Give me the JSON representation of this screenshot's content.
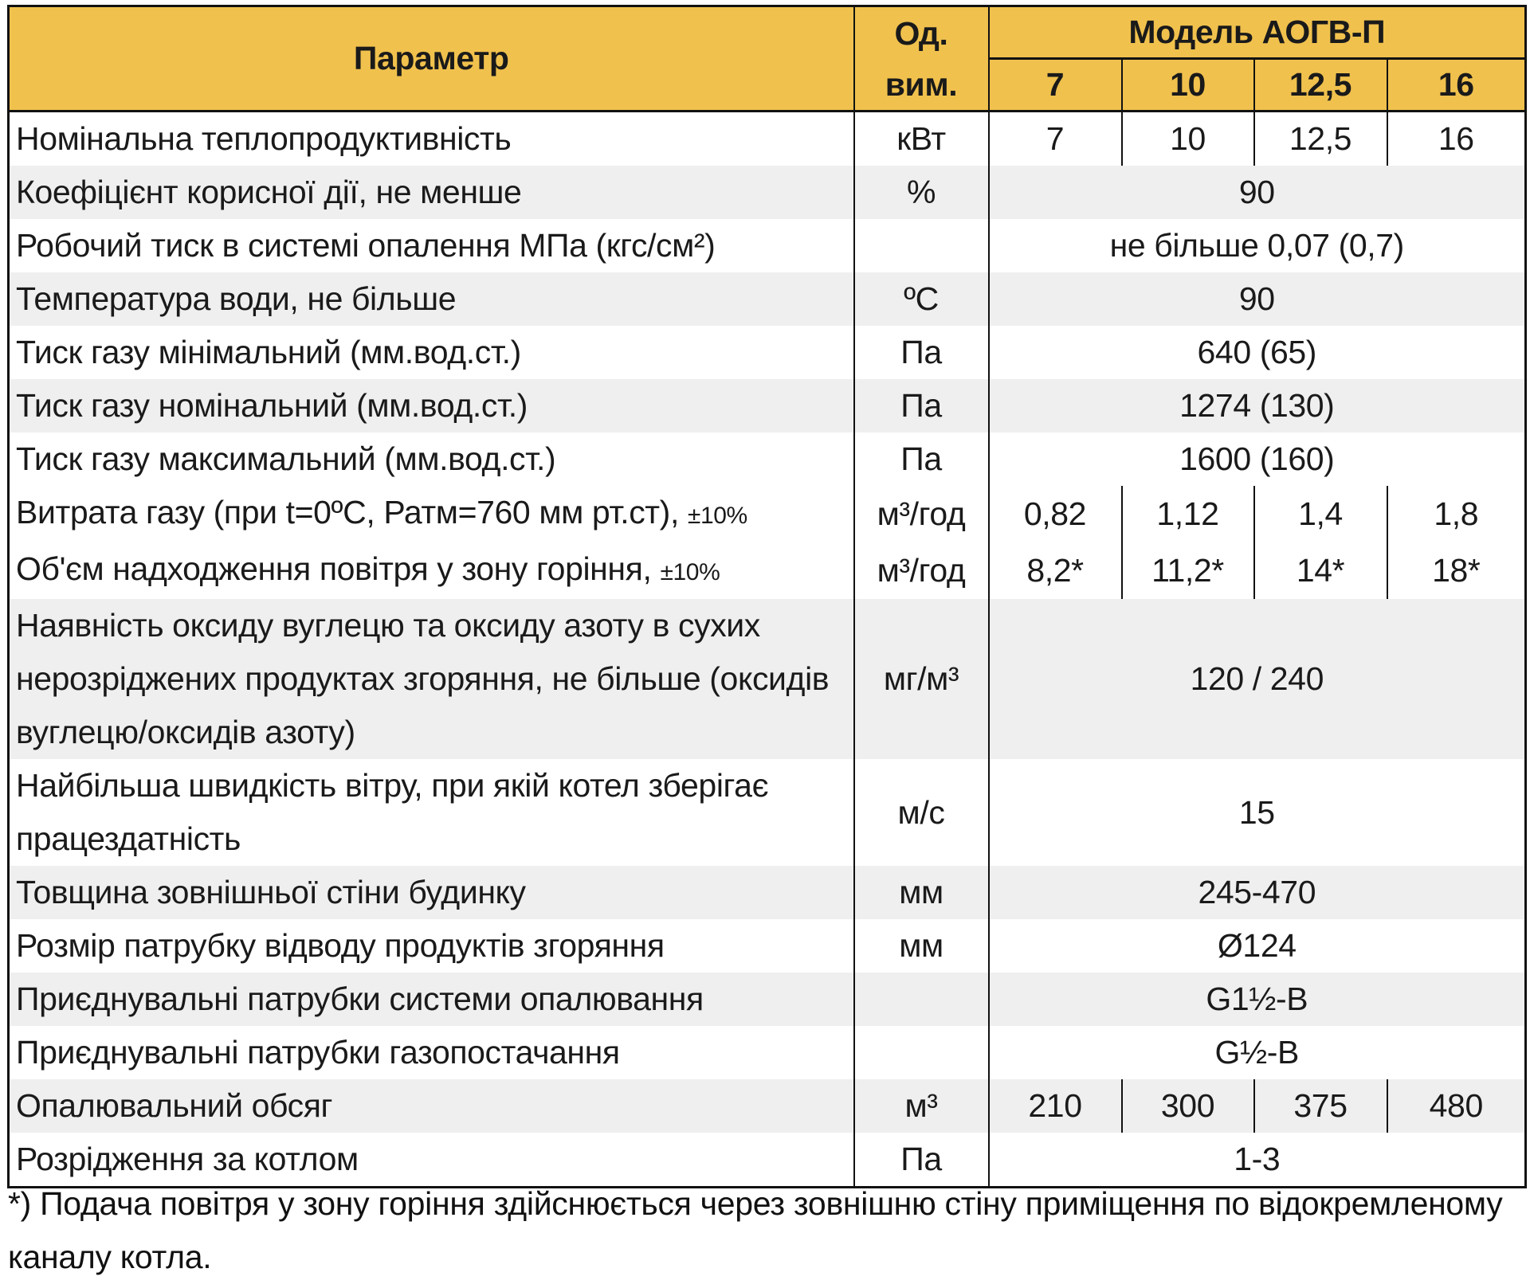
{
  "header": {
    "parameter": "Параметр",
    "unit_line1": "Од.",
    "unit_line2": "вим.",
    "model": "Модель АОГВ-П",
    "models": [
      "7",
      "10",
      "12,5",
      "16"
    ]
  },
  "rows": [
    {
      "param": "Номінальна теплопродуктивність",
      "unit": "кВт",
      "values": [
        "7",
        "10",
        "12,5",
        "16"
      ]
    },
    {
      "param": "Коефіцієнт корисної дії, не менше",
      "unit": "%",
      "value": "90"
    },
    {
      "param": "Робочий тиск в системі опалення МПа (кгс/см²)",
      "unit": "",
      "value": "не більше 0,07 (0,7)"
    },
    {
      "param": "Температура води, не більше",
      "unit": "ºС",
      "value": "90"
    },
    {
      "param": "Тиск газу мінімальний (мм.вод.ст.)",
      "unit": "Па",
      "value": "640 (65)"
    },
    {
      "param": "Тиск газу номінальний (мм.вод.ст.)",
      "unit": "Па",
      "value": "1274 (130)"
    },
    {
      "param": "Тиск газу максимальний (мм.вод.ст.)",
      "unit": "Па",
      "value": "1600 (160)"
    },
    {
      "param": "Витрата газу (при t=0ºС, Ратм=760 мм рт.ст), ",
      "note": "±10%",
      "unit": "м³/год",
      "values": [
        "0,82",
        "1,12",
        "1,4",
        "1,8"
      ]
    },
    {
      "param": "Об'єм надходження повітря у зону горіння, ",
      "note": "±10%",
      "unit": "м³/год",
      "values": [
        "8,2*",
        "11,2*",
        "14*",
        "18*"
      ]
    },
    {
      "param": "Наявність оксиду вуглецю та оксиду азоту в сухих нерозріджених продуктах згоряння, не більше (оксидів вуглецю/оксидів азоту)",
      "unit": "мг/м³",
      "value": "120 / 240"
    },
    {
      "param": "Найбільша швидкість вітру, при якій котел зберігає працездатність",
      "unit": "м/с",
      "value": "15"
    },
    {
      "param": "Товщина зовнішньої стіни будинку",
      "unit": "мм",
      "value": "245-470"
    },
    {
      "param": "Розмір патрубку відводу продуктів згоряння",
      "unit": "мм",
      "value": "Ø124"
    },
    {
      "param": "Приєднувальні патрубки системи опалювання",
      "unit": "",
      "value": "G1½-В"
    },
    {
      "param": "Приєднувальні патрубки газопостачання",
      "unit": "",
      "value": "G½-В"
    },
    {
      "param": "Опалювальний обсяг",
      "unit": "м³",
      "values": [
        "210",
        "300",
        "375",
        "480"
      ]
    },
    {
      "param": "Розрідження за котлом",
      "unit": "Па",
      "value": "1-3"
    }
  ],
  "footnote": "*) Подача повітря у зону горіння здійснюється через зовнішню стіну приміщення по відокремленому каналу котла.",
  "colors": {
    "header": "#f0c14d",
    "stripe": "#efefef",
    "border": "#111111"
  }
}
